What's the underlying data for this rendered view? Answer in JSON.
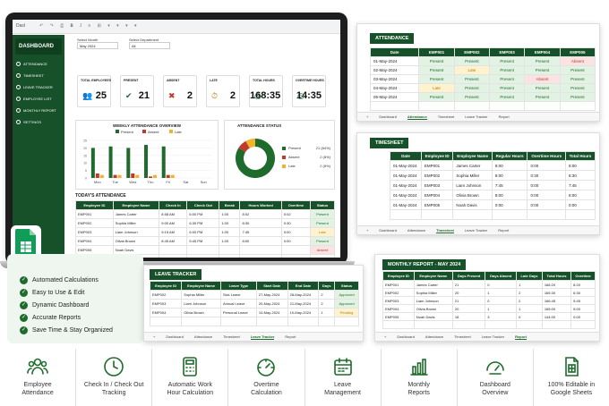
{
  "dashboard": {
    "sheet_label": "Dasl",
    "sidebar_title": "DASHBOARD",
    "sidebar_items": [
      "ATTENDANCE",
      "TIMESHEET",
      "LEAVE TRACKER",
      "EMPLOYEE LIST",
      "MONTHLY REPORT",
      "SETTINGS"
    ],
    "month_label": "Select Month",
    "month_value": "May 2024",
    "dept_label": "Select Department",
    "dept_value": "All",
    "kpis": [
      {
        "label": "TOTAL EMPLOYEES",
        "value": "25",
        "icon": "people-icon"
      },
      {
        "label": "PRESENT",
        "value": "21",
        "icon": "check-shield-icon"
      },
      {
        "label": "ABSENT",
        "value": "2",
        "icon": "person-x-icon"
      },
      {
        "label": "LATE",
        "value": "2",
        "icon": "person-clock-icon"
      },
      {
        "label": "TOTAL HOURS",
        "value": "168:35",
        "icon": "clock-icon"
      },
      {
        "label": "OVERTIME HOURS",
        "value": "14:35",
        "icon": "clock-icon"
      }
    ],
    "weekly_title": "WEEKLY ATTENDANCE OVERVIEW",
    "status_title": "ATTENDANCE STATUS",
    "today_title": "TODAY'S ATTENDANCE",
    "today_headers": [
      "Employee ID",
      "Employee Name",
      "Check In",
      "Check Out",
      "Break",
      "Hours Worked",
      "Overtime",
      "Status"
    ],
    "today_rows": [
      [
        "EMP001",
        "James Carter",
        "8:58 AM",
        "6:00 PM",
        "1:00",
        "8:02",
        "0:02",
        "Present"
      ],
      [
        "EMP002",
        "Sophia Miller",
        "9:00 AM",
        "6:30 PM",
        "1:00",
        "8:30",
        "0:30",
        "Present"
      ],
      [
        "EMP003",
        "Liam Johnson",
        "9:15 AM",
        "6:00 PM",
        "1:00",
        "7:45",
        "0:00",
        "Late"
      ],
      [
        "EMP004",
        "Olivia Brown",
        "8:45 AM",
        "5:45 PM",
        "1:00",
        "8:00",
        "0:00",
        "Present"
      ],
      [
        "EMP005",
        "Noah Davis",
        "",
        "",
        "",
        "",
        "",
        "Absent"
      ]
    ]
  },
  "chart_data": [
    {
      "type": "bar",
      "title": "WEEKLY ATTENDANCE OVERVIEW",
      "categories": [
        "Mon",
        "Tue",
        "Wed",
        "Thu",
        "Fri",
        "Sat",
        "Sun"
      ],
      "ylim": [
        0,
        25
      ],
      "yticks": [
        0,
        5,
        10,
        15,
        20,
        25
      ],
      "series": [
        {
          "name": "Present",
          "color": "#1e6b2c",
          "values": [
            20,
            21,
            20,
            22,
            21,
            0,
            0
          ]
        },
        {
          "name": "Absent",
          "color": "#c0392b",
          "values": [
            3,
            2,
            3,
            1,
            2,
            0,
            0
          ]
        },
        {
          "name": "Late",
          "color": "#f0b429",
          "values": [
            2,
            2,
            2,
            2,
            2,
            0,
            0
          ]
        }
      ],
      "legend": "top"
    },
    {
      "type": "pie",
      "title": "ATTENDANCE STATUS",
      "series": [
        {
          "name": "Present",
          "value": 21,
          "label": "21 (84%)",
          "color": "#1e6b2c"
        },
        {
          "name": "Absent",
          "value": 2,
          "label": "2 (8%)",
          "color": "#c0392b"
        },
        {
          "name": "Late",
          "value": 2,
          "label": "2 (8%)",
          "color": "#f0b429"
        }
      ],
      "legend": "right"
    }
  ],
  "attendance": {
    "title": "ATTENDANCE",
    "headers": [
      "Date",
      "EMP001",
      "EMP002",
      "EMP003",
      "EMP004",
      "EMP005"
    ],
    "rows": [
      [
        "01-May-2024",
        "Present",
        "Present",
        "Present",
        "Present",
        "Absent"
      ],
      [
        "02-May-2024",
        "Present",
        "Late",
        "Present",
        "Present",
        "Present"
      ],
      [
        "03-May-2024",
        "Present",
        "Present",
        "Present",
        "Absent",
        "Present"
      ],
      [
        "04-May-2024",
        "Late",
        "Present",
        "Present",
        "Present",
        "Present"
      ],
      [
        "05-May-2024",
        "Present",
        "Present",
        "Present",
        "Present",
        "Present"
      ]
    ],
    "tabs": [
      "Dashboard",
      "Attendance",
      "Timesheet",
      "Leave Tracker",
      "Report"
    ]
  },
  "timesheet": {
    "title": "TIMESHEET",
    "headers": [
      "Date",
      "Employee ID",
      "Employee Name",
      "Regular Hours",
      "Overtime Hours",
      "Total Hours"
    ],
    "rows": [
      [
        "01-May-2024",
        "EMP001",
        "James Carter",
        "8:00",
        "0:00",
        "8:00"
      ],
      [
        "01-May-2024",
        "EMP002",
        "Sophia Miller",
        "8:00",
        "0:30",
        "8:30"
      ],
      [
        "01-May-2024",
        "EMP003",
        "Liam Johnson",
        "7:45",
        "0:00",
        "7:45"
      ],
      [
        "01-May-2024",
        "EMP004",
        "Olivia Brown",
        "8:00",
        "0:00",
        "8:00"
      ],
      [
        "01-May-2024",
        "EMP005",
        "Noah Davis",
        "0:00",
        "0:00",
        "0:00"
      ]
    ],
    "tabs": [
      "Dashboard",
      "Attendance",
      "Timesheet",
      "Leave Tracker",
      "Report"
    ]
  },
  "leave": {
    "title": "LEAVE TRACKER",
    "headers": [
      "Employee ID",
      "Employee Name",
      "Leave Type",
      "Start Date",
      "End Date",
      "Days",
      "Status"
    ],
    "rows": [
      [
        "EMP002",
        "Sophia Miller",
        "Sick Leave",
        "27-May-2024",
        "28-May-2024",
        "2",
        "Approved"
      ],
      [
        "EMP003",
        "Liam Johnson",
        "Annual Leave",
        "20-May-2024",
        "21-May-2024",
        "2",
        "Approved"
      ],
      [
        "EMP004",
        "Olivia Brown",
        "Personal Leave",
        "10-May-2024",
        "10-May-2024",
        "1",
        "Pending"
      ]
    ],
    "tabs": [
      "Dashboard",
      "Attendance",
      "Timesheet",
      "Leave Tracker",
      "Report"
    ]
  },
  "report": {
    "title": "MONTHLY REPORT - MAY 2024",
    "headers": [
      "Employee ID",
      "Employee Name",
      "Days Present",
      "Days Absent",
      "Late Days",
      "Total Hours",
      "Overtime"
    ],
    "rows": [
      [
        "EMP001",
        "James Carter",
        "21",
        "0",
        "1",
        "168:20",
        "8:20"
      ],
      [
        "EMP002",
        "Sophia Miller",
        "20",
        "1",
        "2",
        "165:30",
        "6:30"
      ],
      [
        "EMP003",
        "Liam Johnson",
        "21",
        "0",
        "2",
        "166:45",
        "5:45"
      ],
      [
        "EMP004",
        "Olivia Brown",
        "20",
        "1",
        "1",
        "165:00",
        "5:00"
      ],
      [
        "EMP005",
        "Noah Davis",
        "18",
        "3",
        "0",
        "144:00",
        "0:00"
      ]
    ],
    "tabs": [
      "Dashboard",
      "Attendance",
      "Timesheet",
      "Leave Tracker",
      "Report"
    ]
  },
  "features": [
    "Automated Calculations",
    "Easy to Use & Edit",
    "Dynamic Dashboard",
    "Accurate Reports",
    "Save Time & Stay Organized"
  ],
  "bottom": [
    {
      "icon": "employees-icon",
      "line1": "Employee",
      "line2": "Attendance"
    },
    {
      "icon": "clock-icon",
      "line1": "Check In / Check Out",
      "line2": "Tracking"
    },
    {
      "icon": "calculator-icon",
      "line1": "Automatic Work",
      "line2": "Hour Calculation"
    },
    {
      "icon": "gauge-icon",
      "line1": "Overtime",
      "line2": "Calculation"
    },
    {
      "icon": "calendar-icon",
      "line1": "Leave",
      "line2": "Management"
    },
    {
      "icon": "bar-chart-icon",
      "line1": "Monthly",
      "line2": "Reports"
    },
    {
      "icon": "dashboard-icon",
      "line1": "Dashboard",
      "line2": "Overview"
    },
    {
      "icon": "editable-doc-icon",
      "line1": "100% Editable in",
      "line2": "Google Sheets"
    }
  ],
  "colors": {
    "brand": "#16512a",
    "present": "#1e6b2c",
    "absent": "#c0392b",
    "late": "#f0b429"
  }
}
